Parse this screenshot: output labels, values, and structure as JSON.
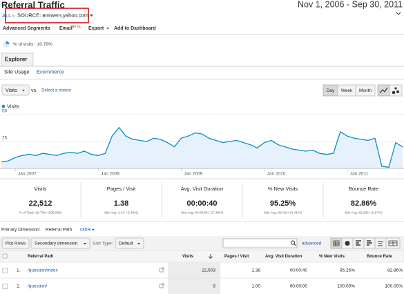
{
  "header": {
    "title": "Referral Traffic",
    "date_range": "Nov 1, 2006 - Sep 30, 2011"
  },
  "breadcrumb": {
    "root": "ALL",
    "separator": "»",
    "current": "SOURCE: answers.yahoo.com"
  },
  "toolbar": {
    "segments": "Advanced Segments",
    "email": "Email",
    "beta": "BETA",
    "export": "Export",
    "dashboard": "Add to Dashboard"
  },
  "segment": "% of visits : 10.79%",
  "tabs": {
    "main": "Explorer",
    "sub": [
      "Site Usage",
      "Ecommerce"
    ]
  },
  "controls": {
    "metric": "Visits",
    "vs": "vs.",
    "select": "Select a metric",
    "periods": [
      "Day",
      "Week",
      "Month"
    ]
  },
  "chart": {
    "type": "line",
    "series": [
      {
        "name": "Visits",
        "color": "#058dc7",
        "values": [
          6,
          7,
          10,
          12,
          13,
          12,
          14,
          13,
          12,
          14,
          15,
          14,
          16,
          13,
          12,
          14,
          30,
          38,
          30,
          27,
          26,
          25,
          28,
          27,
          24,
          20,
          28,
          30,
          33,
          32,
          28,
          26,
          24,
          25,
          26,
          24,
          22,
          19,
          24,
          26,
          22,
          20,
          18,
          17,
          16,
          17,
          14,
          13,
          14,
          34,
          30,
          28,
          27,
          26,
          28,
          2,
          1,
          24,
          20
        ]
      }
    ],
    "ylim": [
      0,
      50
    ],
    "yticks": [
      25,
      50
    ],
    "xlim": [
      0,
      58
    ],
    "xticks": [
      {
        "value": 2,
        "label": "Jan 2007"
      },
      {
        "value": 14,
        "label": "Jan 2008"
      },
      {
        "value": 26,
        "label": "Jan 2009"
      },
      {
        "value": 38,
        "label": "Jan 2010"
      },
      {
        "value": 50,
        "label": "Jan 2011"
      }
    ],
    "grid": true
  },
  "metrics": [
    {
      "label": "Visits",
      "value": "22,512",
      "note": "% of Total: 10.79% (208,580)"
    },
    {
      "label": "Pages / Visit",
      "value": "1.38",
      "note": "Site Avg: 1.43 (-3.39%)"
    },
    {
      "label": "Avg. Visit Duration",
      "value": "00:00:40",
      "note": "Site Avg: 00:00:55 (-27.38%)"
    },
    {
      "label": "% New Visits",
      "value": "95.25%",
      "note": "Site Avg: 93.01% (2.41%)"
    },
    {
      "label": "Bounce Rate",
      "value": "82.86%",
      "note": "Site Avg: 81.26% (1.97%)"
    }
  ],
  "dimension": {
    "label": "Primary Dimension:",
    "current": "Referral Path",
    "other": "Other"
  },
  "table_tools": {
    "plot": "Plot Rows",
    "secondary": "Secondary dimension",
    "sort_label": "Sort Type:",
    "sort": "Default",
    "advanced": "advanced"
  },
  "table": {
    "headers": [
      "Referral Path",
      "Visits",
      "Pages / Visit",
      "Avg. Visit Duration",
      "% New Visits",
      "Bounce Rate"
    ],
    "rows": [
      [
        "1.",
        "/question/index",
        "22,503",
        "1.38",
        "00:00:40",
        "95.25%",
        "82.86%"
      ],
      [
        "2.",
        "/question/",
        "9",
        "1.00",
        "00:00:00",
        "100.00%",
        "100.00%"
      ]
    ]
  }
}
